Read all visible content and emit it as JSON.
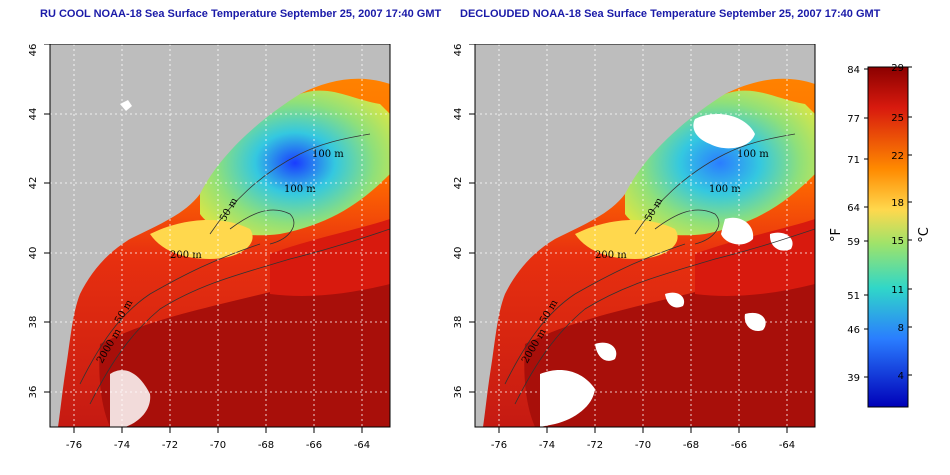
{
  "panels": [
    {
      "title": "RU COOL NOAA-18 Sea Surface Temperature September 25, 2007 17:40 GMT"
    },
    {
      "title": "DECLOUDED NOAA-18 Sea Surface Temperature September 25, 2007 17:40 GMT"
    }
  ],
  "map": {
    "lon_range": [
      -77,
      -63
    ],
    "lat_range": [
      35,
      46
    ],
    "lon_ticks": [
      "-76",
      "-74",
      "-72",
      "-70",
      "-68",
      "-66",
      "-64"
    ],
    "lat_ticks": [
      "36",
      "38",
      "40",
      "42",
      "44",
      "46"
    ],
    "land_color": "#bdbdbd",
    "cloud_color": "#ffffff",
    "contour_labels": [
      "100 m",
      "100 m",
      "50 m",
      "200 m",
      "50 m",
      "2000 m"
    ]
  },
  "colorbar": {
    "fahrenheit_labels": [
      "84",
      "77",
      "71",
      "64",
      "59",
      "51",
      "46",
      "39"
    ],
    "celsius_labels": [
      "29",
      "25",
      "22",
      "18",
      "15",
      "11",
      "8",
      "4"
    ],
    "fahrenheit_unit": "°F",
    "celsius_unit": "°C",
    "colors": [
      "#8b0000",
      "#d81a0e",
      "#ff8a00",
      "#ffd84d",
      "#9ee36a",
      "#30d7c8",
      "#2a7dff",
      "#0000b8"
    ]
  }
}
